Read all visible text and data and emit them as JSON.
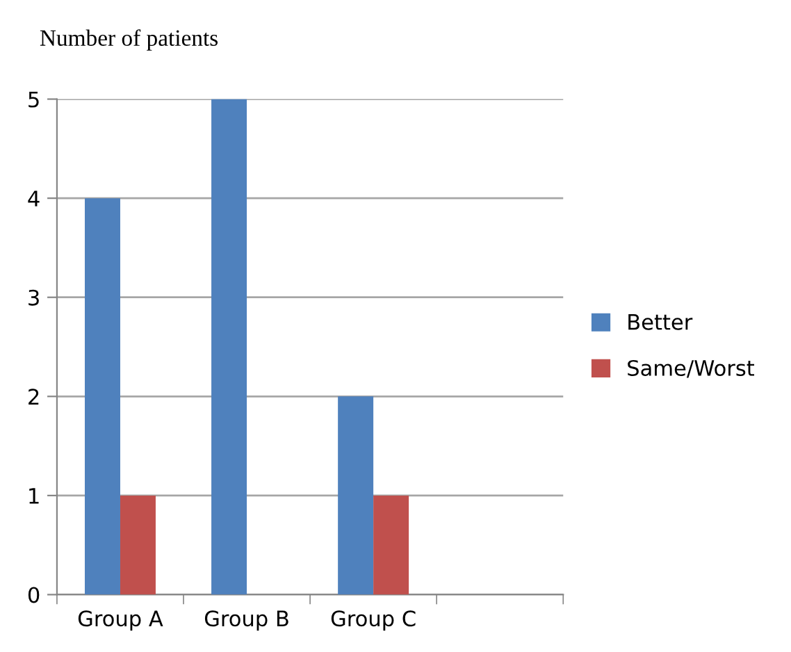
{
  "chart_data": {
    "type": "bar",
    "ylabel": "Number of patients",
    "categories": [
      "Group A",
      "Group B",
      "Group C",
      null
    ],
    "series": [
      {
        "name": "Better",
        "color": "#4f81bd",
        "values": [
          4,
          5,
          2,
          null
        ]
      },
      {
        "name": "Same/Worst",
        "color": "#c0504d",
        "values": [
          1,
          0,
          1,
          null
        ]
      }
    ],
    "ylim": [
      0,
      5
    ],
    "yticks": [
      0,
      1,
      2,
      3,
      4,
      5
    ],
    "grid": "y",
    "legend": "right"
  }
}
